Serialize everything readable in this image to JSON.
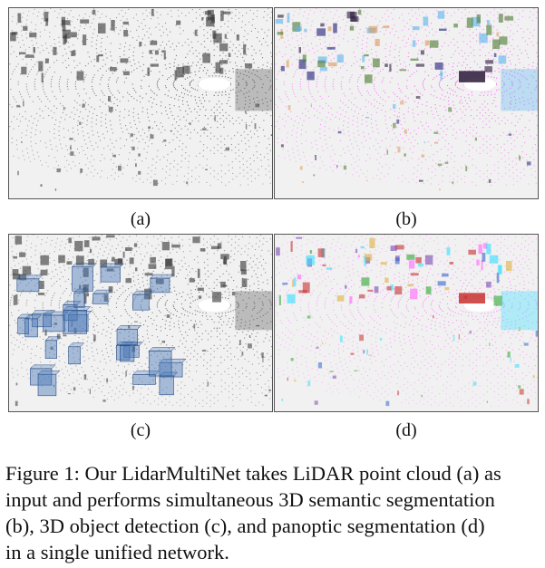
{
  "figure": {
    "panels": [
      {
        "id": "a",
        "label": "(a)",
        "style": "raw",
        "name": "lidar-raw-point-cloud"
      },
      {
        "id": "b",
        "label": "(b)",
        "style": "semantic",
        "name": "semantic-segmentation"
      },
      {
        "id": "c",
        "label": "(c)",
        "style": "detection",
        "name": "object-detection"
      },
      {
        "id": "d",
        "label": "(d)",
        "style": "panoptic",
        "name": "panoptic-segmentation"
      }
    ],
    "caption_lines": [
      "Figure 1: Our LidarMultiNet takes LiDAR point cloud (a) as",
      "input and performs simultaneous 3D semantic segmentation",
      "(b), 3D object detection (c), and panoptic segmentation (d)",
      "in a single unified network."
    ],
    "colors": {
      "raw": "#333333",
      "semantic": [
        "#ff33ff",
        "#5ab4f0",
        "#4a7a2e",
        "#e09a5a",
        "#1e1e7a",
        "#2a1a3a"
      ],
      "detection_box": "#4a78b8",
      "panoptic": [
        "#ff66ff",
        "#33e0ff",
        "#2ea82e",
        "#c83030",
        "#7a4ab0",
        "#e0b040",
        "#3366cc"
      ]
    }
  }
}
